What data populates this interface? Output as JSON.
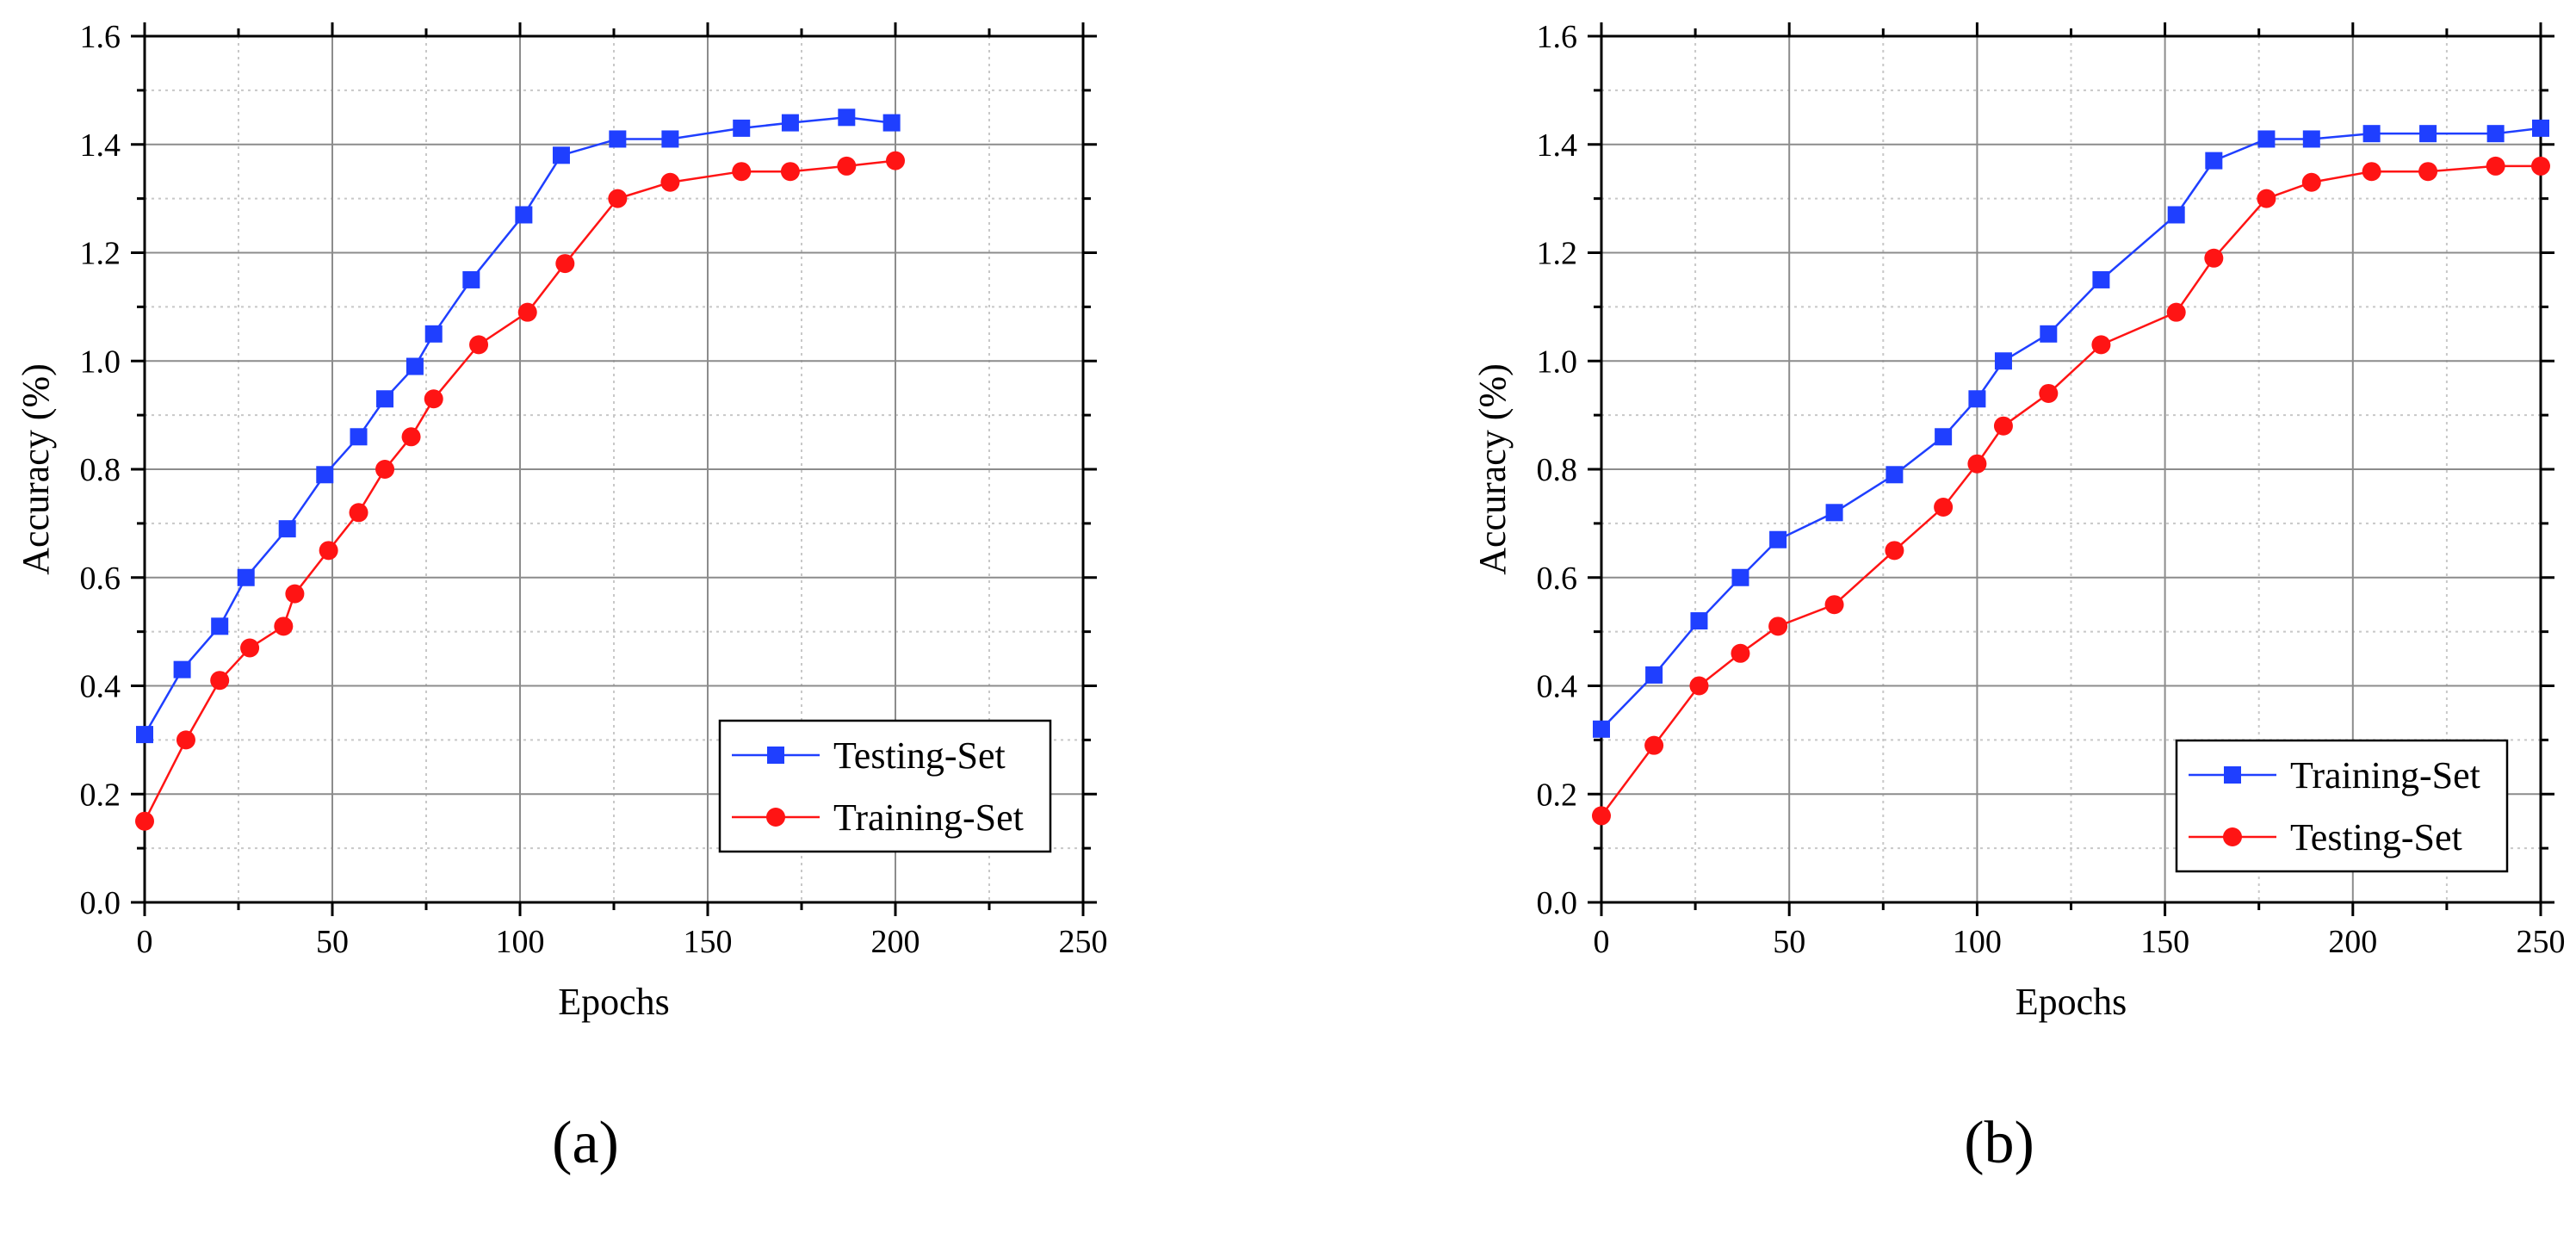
{
  "chart_data": [
    {
      "type": "line",
      "panel_label": "(a)",
      "xlabel": "Epochs",
      "ylabel": "Accuracy (%)",
      "xlim": [
        0,
        250
      ],
      "ylim": [
        0,
        1.6
      ],
      "xticks": [
        "0",
        "50",
        "100",
        "150",
        "200",
        "250"
      ],
      "yticks": [
        "0.0",
        "0.2",
        "0.4",
        "0.6",
        "0.8",
        "1.0",
        "1.2",
        "1.4",
        "1.6"
      ],
      "grid": true,
      "legend_position": "bottom-right",
      "series": [
        {
          "name": "Testing-Set",
          "color": "#1f3fff",
          "marker": "square",
          "x": [
            0,
            10,
            20,
            27,
            38,
            48,
            57,
            64,
            72,
            77,
            87,
            101,
            111,
            126,
            140,
            159,
            172,
            187,
            199
          ],
          "y": [
            0.31,
            0.43,
            0.51,
            0.6,
            0.69,
            0.79,
            0.86,
            0.93,
            0.99,
            1.05,
            1.15,
            1.27,
            1.38,
            1.41,
            1.41,
            1.43,
            1.44,
            1.45,
            1.44
          ]
        },
        {
          "name": "Training-Set",
          "color": "#ff1414",
          "marker": "circle",
          "x": [
            0,
            11,
            20,
            28,
            37,
            40,
            49,
            57,
            64,
            71,
            77,
            89,
            102,
            112,
            126,
            140,
            159,
            172,
            187,
            200
          ],
          "y": [
            0.15,
            0.3,
            0.41,
            0.47,
            0.51,
            0.57,
            0.65,
            0.72,
            0.8,
            0.86,
            0.93,
            1.03,
            1.09,
            1.18,
            1.3,
            1.33,
            1.35,
            1.35,
            1.36,
            1.37
          ]
        }
      ]
    },
    {
      "type": "line",
      "panel_label": "(b)",
      "xlabel": "Epochs",
      "ylabel": "Accuracy (%)",
      "xlim": [
        0,
        250
      ],
      "ylim": [
        0,
        1.6
      ],
      "xticks": [
        "0",
        "50",
        "100",
        "150",
        "200",
        "250"
      ],
      "yticks": [
        "0.0",
        "0.2",
        "0.4",
        "0.6",
        "0.8",
        "1.0",
        "1.2",
        "1.4",
        "1.6"
      ],
      "grid": true,
      "legend_position": "bottom-right",
      "series": [
        {
          "name": "Training-Set",
          "color": "#1f3fff",
          "marker": "square",
          "x": [
            0,
            14,
            26,
            37,
            47,
            62,
            78,
            91,
            100,
            107,
            119,
            133,
            153,
            163,
            177,
            189,
            205,
            220,
            238,
            250
          ],
          "y": [
            0.32,
            0.42,
            0.52,
            0.6,
            0.67,
            0.72,
            0.79,
            0.86,
            0.93,
            1.0,
            1.05,
            1.15,
            1.27,
            1.37,
            1.41,
            1.41,
            1.42,
            1.42,
            1.42,
            1.43
          ]
        },
        {
          "name": "Testing-Set",
          "color": "#ff1414",
          "marker": "circle",
          "x": [
            0,
            14,
            26,
            37,
            47,
            62,
            78,
            91,
            100,
            107,
            119,
            133,
            153,
            163,
            177,
            189,
            205,
            220,
            238,
            250
          ],
          "y": [
            0.16,
            0.29,
            0.4,
            0.46,
            0.51,
            0.55,
            0.65,
            0.73,
            0.81,
            0.88,
            0.94,
            1.03,
            1.09,
            1.19,
            1.3,
            1.33,
            1.35,
            1.35,
            1.36,
            1.36
          ]
        }
      ]
    }
  ]
}
